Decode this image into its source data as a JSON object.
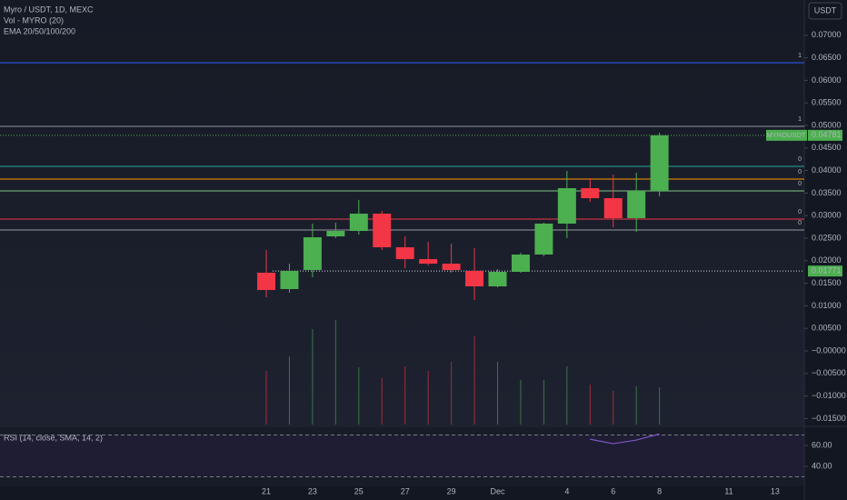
{
  "chart_data": {
    "type": "candlestick",
    "title": "Myro / USDT, 1D, MEXC",
    "indicators": [
      "Vol - MYRO (20)",
      "EMA 20/50/100/200"
    ],
    "currency_button": "USDT",
    "categories": [
      "21",
      null,
      "23",
      null,
      "25",
      null,
      "27",
      null,
      "29",
      null,
      "Dec",
      null,
      null,
      "4",
      null,
      "6",
      null,
      "8",
      null,
      null,
      "11",
      null,
      "13"
    ],
    "ohlc": [
      [
        0.01734,
        0.02238,
        0.0119,
        0.01351
      ],
      [
        0.01371,
        0.01935,
        0.0129,
        0.01774
      ],
      [
        0.01794,
        0.02823,
        0.01633,
        0.0252
      ],
      [
        0.0254,
        0.02843,
        0.025,
        0.02661
      ],
      [
        0.02661,
        0.03347,
        0.02581,
        0.03044
      ],
      [
        0.03044,
        0.03105,
        0.02238,
        0.02298
      ],
      [
        0.02298,
        0.0254,
        0.01835,
        0.02036
      ],
      [
        0.02036,
        0.02419,
        0.01895,
        0.01935
      ],
      [
        0.01935,
        0.02379,
        0.01734,
        0.01794
      ],
      [
        0.01774,
        0.02278,
        0.01129,
        0.01431
      ],
      [
        0.01431,
        0.01815,
        0.01411,
        0.01754
      ],
      [
        0.01754,
        0.02177,
        0.01734,
        0.02137
      ],
      [
        0.02137,
        0.02843,
        0.02097,
        0.02823
      ],
      [
        0.02823,
        0.03992,
        0.025,
        0.03609
      ],
      [
        0.03609,
        0.03831,
        0.03306,
        0.03387
      ],
      [
        0.03387,
        0.03911,
        0.02742,
        0.02944
      ],
      [
        0.02944,
        0.03952,
        0.02641,
        0.03548
      ],
      [
        0.03548,
        0.04839,
        0.03427,
        0.04781
      ]
    ],
    "up_color": "#4caf50",
    "down_color": "#f23645",
    "volume_tops": [
      -0.00444,
      -0.00121,
      0.00484,
      0.00685,
      -0.00363,
      -0.00605,
      -0.00343,
      -0.00444,
      -0.00242,
      0.00323,
      -0.00242,
      -0.00645,
      -0.00645,
      -0.00343,
      -0.00746,
      -0.00887,
      -0.00786,
      -0.00806
    ],
    "ylim": [
      -0.01633,
      0.07782
    ],
    "yticks": [
      {
        "value": 0.07,
        "label": "0.07000"
      },
      {
        "value": 0.065,
        "label": "0.06500"
      },
      {
        "value": 0.06,
        "label": "0.06000"
      },
      {
        "value": 0.055,
        "label": "0.05500"
      },
      {
        "value": 0.05,
        "label": "0.05000"
      },
      {
        "value": 0.045,
        "label": "0.04500"
      },
      {
        "value": 0.04,
        "label": "0.04000"
      },
      {
        "value": 0.035,
        "label": "0.03500"
      },
      {
        "value": 0.03,
        "label": "0.03000"
      },
      {
        "value": 0.025,
        "label": "0.02500"
      },
      {
        "value": 0.02,
        "label": "0.02000"
      },
      {
        "value": 0.015,
        "label": "0.01500"
      },
      {
        "value": 0.01,
        "label": "0.01000"
      },
      {
        "value": 0.005,
        "label": "0.00500"
      },
      {
        "value": 0,
        "label": "−0.00000"
      },
      {
        "value": -0.005,
        "label": "−0.00500"
      },
      {
        "value": -0.01,
        "label": "−0.01000"
      },
      {
        "value": -0.015,
        "label": "−0.01500"
      }
    ],
    "levels": [
      {
        "value": 0.06391,
        "color": "#2962ff",
        "label": "1"
      },
      {
        "value": 0.0498,
        "color": "#9598a1",
        "label": "1"
      },
      {
        "value": 0.04093,
        "color": "#26a69a",
        "label": "0"
      },
      {
        "value": 0.0381,
        "color": "#ff9800",
        "label": "0"
      },
      {
        "value": 0.03548,
        "color": "#81c784",
        "label": "0"
      },
      {
        "value": 0.02923,
        "color": "#f23645",
        "label": "0"
      },
      {
        "value": 0.02681,
        "color": "#9598a1",
        "label": "0"
      }
    ],
    "price_tag": {
      "name": "MYROUSDT",
      "value": 0.04781,
      "label": "0.04781"
    },
    "marker_tag": {
      "value": 0.01771,
      "label": "0.01771"
    },
    "rsi": {
      "title": "RSI (14, close, SMA, 14, 2)",
      "color": "#7e57c2",
      "values": [
        null,
        null,
        null,
        null,
        null,
        null,
        null,
        null,
        null,
        null,
        null,
        null,
        null,
        null,
        66,
        61.7,
        65.2,
        71
      ],
      "ylim": [
        20.9,
        77.4
      ],
      "yticks": [
        {
          "value": 60,
          "label": "60.00"
        },
        {
          "value": 40,
          "label": "40.00"
        }
      ],
      "bands": [
        70,
        30
      ]
    }
  }
}
